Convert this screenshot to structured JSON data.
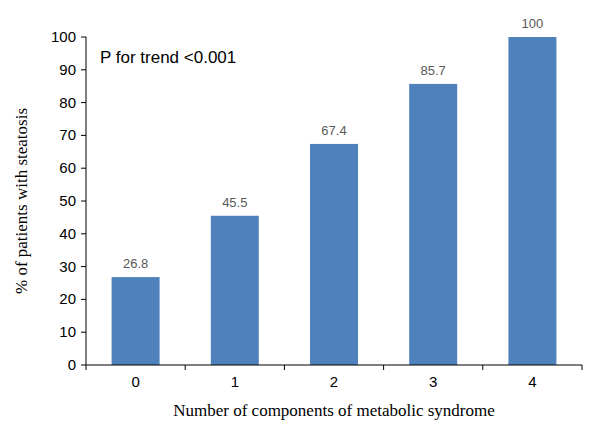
{
  "chart_data": {
    "type": "bar",
    "categories": [
      "0",
      "1",
      "2",
      "3",
      "4"
    ],
    "values": [
      26.8,
      45.5,
      67.4,
      85.7,
      100
    ],
    "color": "#4f81bd",
    "ylim": [
      0,
      100
    ],
    "yticks": [
      0,
      10,
      20,
      30,
      40,
      50,
      60,
      70,
      80,
      90,
      100
    ],
    "xlabel": "Number of components of metabolic syndrome",
    "ylabel": "% of patients with steatosis",
    "annotation": "P for trend <0.001",
    "data_labels": true,
    "grid": false
  }
}
